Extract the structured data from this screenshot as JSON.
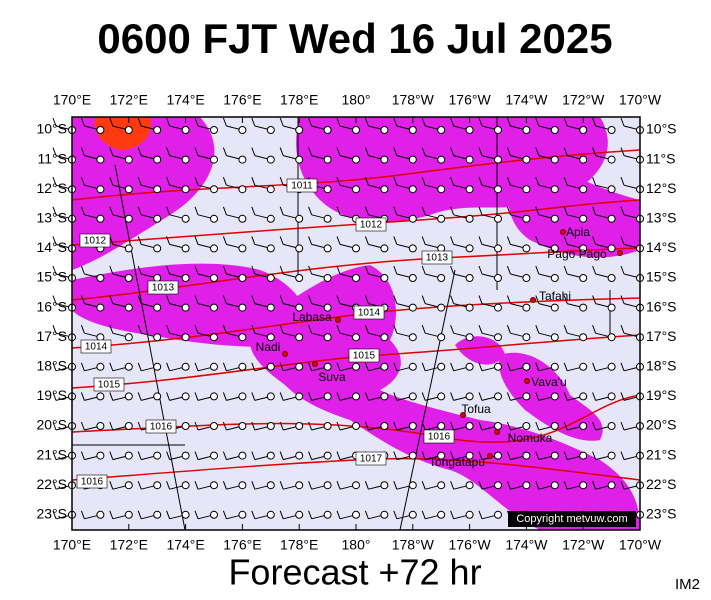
{
  "header": {
    "title": "0600 FJT Wed 16 Jul 2025"
  },
  "map": {
    "longitudes": [
      "170°E",
      "172°E",
      "174°E",
      "176°E",
      "178°E",
      "180°",
      "178°W",
      "176°W",
      "174°W",
      "172°W",
      "170°W"
    ],
    "latitudes": [
      "10°S",
      "11°S",
      "12°S",
      "13°S",
      "14°S",
      "15°S",
      "16°S",
      "17°S",
      "18°S",
      "19°S",
      "20°S",
      "21°S",
      "22°S",
      "23°S"
    ],
    "isobars": [
      "1011",
      "1012",
      "1012",
      "1013",
      "1013",
      "1014",
      "1014",
      "1015",
      "1015",
      "1016",
      "1016",
      "1017",
      "1016"
    ],
    "places": [
      "Apia",
      "Pago Pago",
      "Tafahi",
      "Labasa",
      "Nadi",
      "Suva",
      "Vava'u",
      "Tofua",
      "Nomuka",
      "Tongatapu"
    ],
    "copyright": "Copyright metvuw.com"
  },
  "footer": {
    "forecast": "Forecast +72 hr",
    "code": "IM2"
  }
}
